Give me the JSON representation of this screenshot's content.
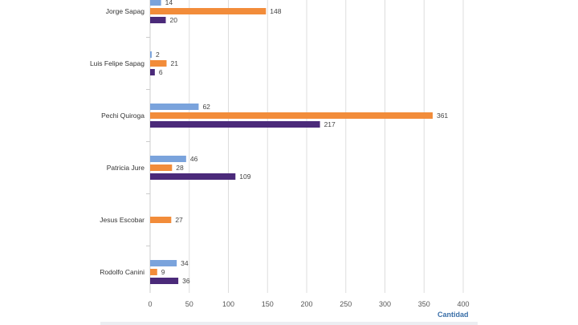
{
  "chart_data": {
    "type": "bar",
    "orientation": "horizontal",
    "categories": [
      "Jorge Sapag",
      "Luis Felipe Sapag",
      "Pechi Quiroga",
      "Patricia Jure",
      "Jesus Escobar",
      "Rodolfo Canini"
    ],
    "series": [
      {
        "color": "#7aa3dc",
        "values": [
          14,
          2,
          62,
          46,
          null,
          34
        ]
      },
      {
        "color": "#f28c3a",
        "values": [
          148,
          21,
          361,
          28,
          27,
          9
        ]
      },
      {
        "color": "#4b2a7a",
        "values": [
          20,
          6,
          217,
          109,
          null,
          36
        ]
      }
    ],
    "xlabel": "Cantidad",
    "xlim": [
      0,
      400
    ],
    "xticks": [
      0,
      50,
      100,
      150,
      200,
      250,
      300,
      350,
      400
    ],
    "grid": true
  }
}
